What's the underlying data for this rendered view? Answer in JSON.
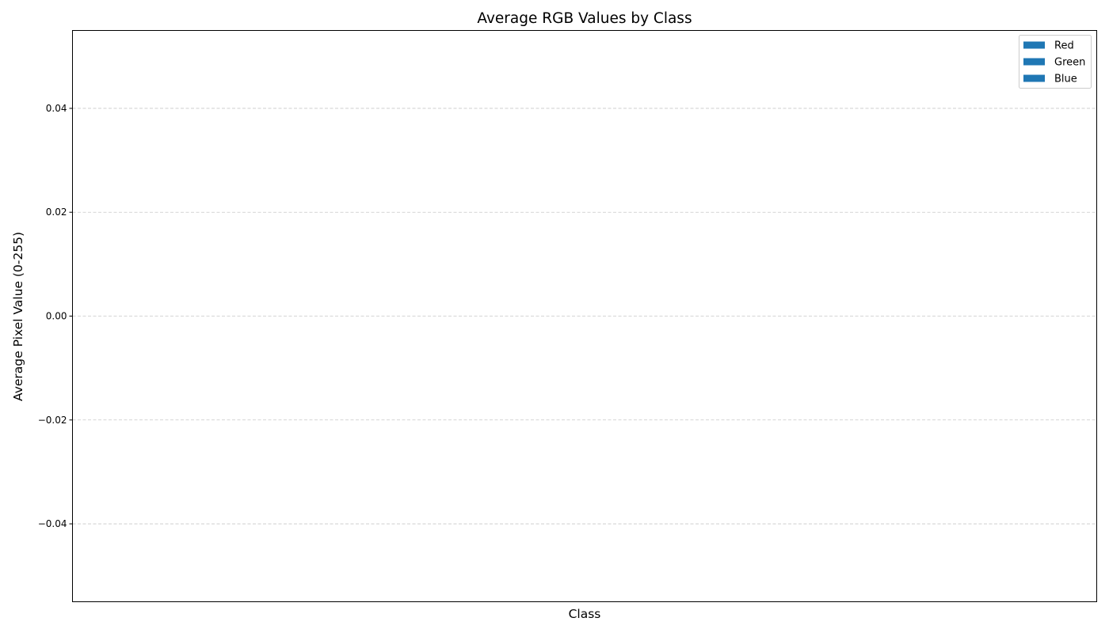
{
  "chart_data": {
    "type": "bar",
    "title": "Average RGB Values by Class",
    "xlabel": "Class",
    "ylabel": "Average Pixel Value (0-255)",
    "categories": [],
    "series": [
      {
        "name": "Red",
        "values": [],
        "color": "#1f77b4"
      },
      {
        "name": "Green",
        "values": [],
        "color": "#1f77b4"
      },
      {
        "name": "Blue",
        "values": [],
        "color": "#1f77b4"
      }
    ],
    "ylim": [
      -0.055,
      0.055
    ],
    "yticks": [
      0.04,
      0.02,
      0.0,
      -0.02,
      -0.04
    ],
    "ytick_labels": [
      "0.04",
      "0.02",
      "0.00",
      "−0.02",
      "−0.04"
    ],
    "grid": "y-dashed",
    "legend_position": "top-right"
  }
}
